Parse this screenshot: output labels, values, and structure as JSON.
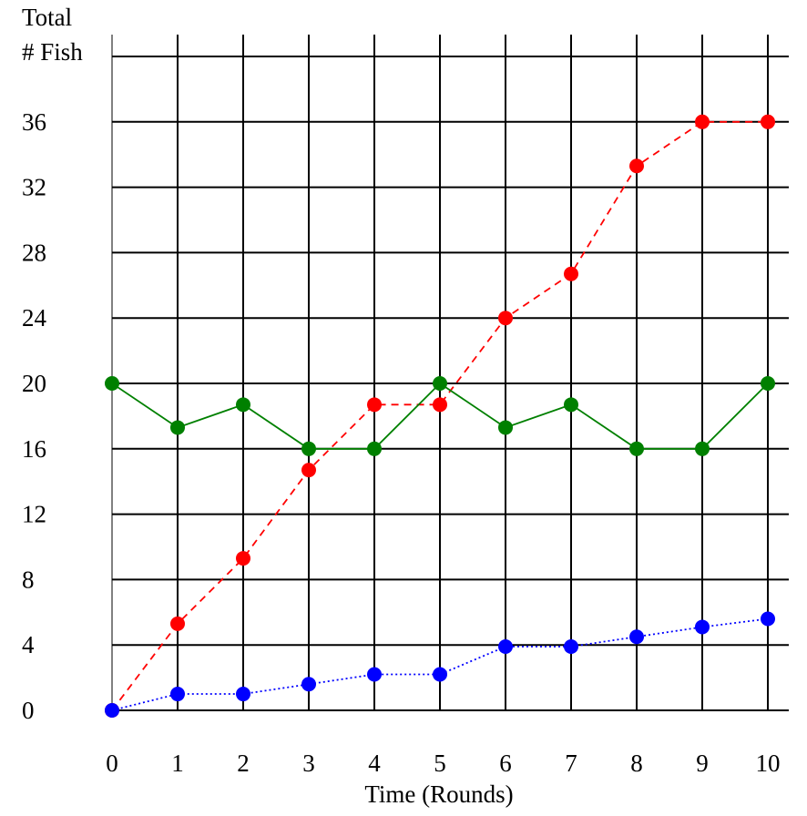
{
  "chart_data": {
    "type": "line",
    "ylabel_lines": [
      "Total",
      "# Fish"
    ],
    "xlabel": "Time (Rounds)",
    "x": [
      0,
      1,
      2,
      3,
      4,
      5,
      6,
      7,
      8,
      9,
      10
    ],
    "x_ticks": [
      "0",
      "1",
      "2",
      "3",
      "4",
      "5",
      "6",
      "7",
      "8",
      "9",
      "10"
    ],
    "y_ticks": [
      "0",
      "4",
      "8",
      "12",
      "16",
      "20",
      "24",
      "28",
      "32",
      "36"
    ],
    "xlim": [
      0,
      10
    ],
    "ylim": [
      0,
      40
    ],
    "grid": true,
    "legend": "none",
    "series": [
      {
        "color": "#ff0000",
        "line_style": "dashed",
        "values": [
          0,
          5.3,
          9.3,
          14.7,
          18.7,
          18.7,
          24,
          26.7,
          33.3,
          36,
          36
        ]
      },
      {
        "color": "#008000",
        "line_style": "solid",
        "values": [
          20,
          17.3,
          18.7,
          16,
          16,
          20,
          17.3,
          18.7,
          16,
          16,
          20
        ]
      },
      {
        "color": "#0000ff",
        "line_style": "dotted",
        "values": [
          0,
          1,
          1,
          1.6,
          2.2,
          2.2,
          3.9,
          3.9,
          4.5,
          5.1,
          5.6
        ]
      }
    ]
  }
}
